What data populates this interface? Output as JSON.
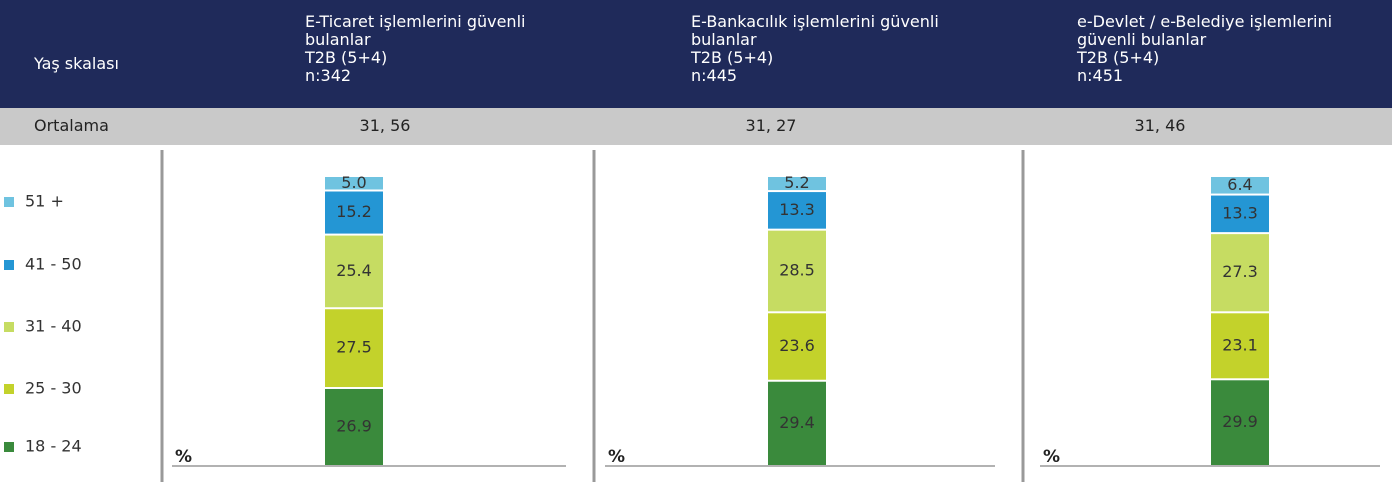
{
  "header": {
    "row_label": "Yaş skalası",
    "columns": [
      {
        "title_lines": [
          "E-Ticaret işlemlerini güvenli",
          "bulanlar"
        ],
        "measure": "T2B (5+4)",
        "n": "n:342"
      },
      {
        "title_lines": [
          "E-Bankacılık işlemlerini güvenli",
          "bulanlar"
        ],
        "measure": "T2B (5+4)",
        "n": "n:445"
      },
      {
        "title_lines": [
          "e-Devlet / e-Belediye işlemlerini",
          "güvenli bulanlar"
        ],
        "measure": "T2B (5+4)",
        "n": "n:451"
      }
    ]
  },
  "average_row": {
    "label": "Ortalama",
    "values": [
      "31, 56",
      "31, 27",
      "31, 46"
    ]
  },
  "chart_data": {
    "type": "stacked_bar",
    "y_label": "%",
    "ylim": [
      0,
      100
    ],
    "categories": [
      "E-Ticaret",
      "E-Bankacılık",
      "e-Devlet / e-Belediye"
    ],
    "series": [
      {
        "name": "18 - 24",
        "color": "#3a8a3c",
        "values": [
          26.9,
          29.4,
          29.9
        ]
      },
      {
        "name": "25 - 30",
        "color": "#c3d22b",
        "values": [
          27.5,
          23.6,
          23.1
        ]
      },
      {
        "name": "31 - 40",
        "color": "#c6dc62",
        "values": [
          25.4,
          28.5,
          27.3
        ]
      },
      {
        "name": "41 - 50",
        "color": "#2496d4",
        "values": [
          15.2,
          13.3,
          13.3
        ]
      },
      {
        "name": "51 +",
        "color": "#6fc3e0",
        "values": [
          5.0,
          5.2,
          6.4
        ],
        "value_labels": [
          "5.0",
          "5.2",
          "6.4"
        ]
      }
    ]
  }
}
